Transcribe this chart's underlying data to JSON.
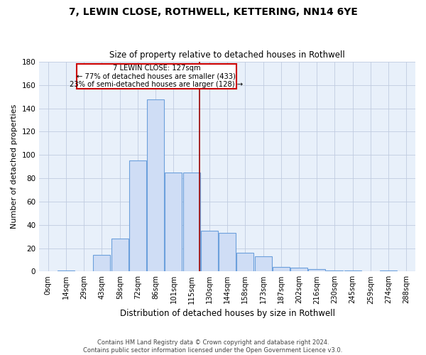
{
  "title": "7, LEWIN CLOSE, ROTHWELL, KETTERING, NN14 6YE",
  "subtitle": "Size of property relative to detached houses in Rothwell",
  "xlabel": "Distribution of detached houses by size in Rothwell",
  "ylabel": "Number of detached properties",
  "categories": [
    "0sqm",
    "14sqm",
    "29sqm",
    "43sqm",
    "58sqm",
    "72sqm",
    "86sqm",
    "101sqm",
    "115sqm",
    "130sqm",
    "144sqm",
    "158sqm",
    "173sqm",
    "187sqm",
    "202sqm",
    "216sqm",
    "230sqm",
    "245sqm",
    "259sqm",
    "274sqm",
    "288sqm"
  ],
  "values": [
    0,
    1,
    0,
    14,
    28,
    95,
    148,
    85,
    85,
    35,
    33,
    16,
    13,
    4,
    3,
    2,
    1,
    1,
    0,
    1,
    0
  ],
  "bar_color": "#cfddf5",
  "bar_edge_color": "#6ca0dc",
  "ylim": [
    0,
    180
  ],
  "yticks": [
    0,
    20,
    40,
    60,
    80,
    100,
    120,
    140,
    160,
    180
  ],
  "property_line_x": 8.45,
  "annotation_title": "7 LEWIN CLOSE: 127sqm",
  "annotation_line1": "← 77% of detached houses are smaller (433)",
  "annotation_line2": "23% of semi-detached houses are larger (128) →",
  "footer_line1": "Contains HM Land Registry data © Crown copyright and database right 2024.",
  "footer_line2": "Contains public sector information licensed under the Open Government Licence v3.0.",
  "background_color": "#ffffff",
  "plot_bg_color": "#e8f0fa",
  "grid_color": "#c0cce0"
}
